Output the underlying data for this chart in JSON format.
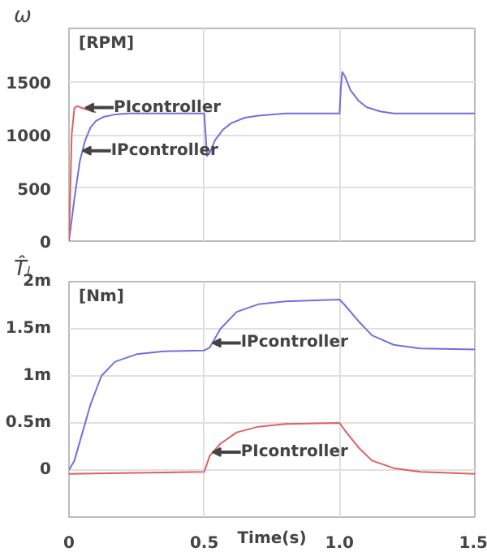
{
  "chart_data": [
    {
      "type": "line",
      "ylabel": "ω",
      "xlim": [
        0,
        1.5
      ],
      "xticks": [
        {
          "value": 0.5,
          "label": null
        },
        {
          "value": 1,
          "label": null
        }
      ],
      "ylim": [
        0,
        2000
      ],
      "yticks": [
        0,
        500,
        1000,
        1500
      ],
      "tick_labels": "y",
      "grid": true,
      "annotations": [
        "[RPM]",
        {
          "text": "PIcontroller",
          "x": 0.06,
          "y": 1255
        },
        {
          "text": "IPcontroller",
          "x": 0.05,
          "y": 850
        }
      ],
      "series": [
        {
          "color": "#7070e0",
          "x": [
            0,
            0.02,
            0.04,
            0.06,
            0.08,
            0.1,
            0.13,
            0.17,
            0.22,
            0.5,
            0.505,
            0.51,
            0.52,
            0.54,
            0.57,
            0.6,
            0.65,
            0.7,
            0.8,
            1.0,
            1.005,
            1.01,
            1.02,
            1.04,
            1.07,
            1.1,
            1.15,
            1.2,
            1.3,
            1.5
          ],
          "values": [
            0,
            400,
            750,
            950,
            1070,
            1130,
            1170,
            1190,
            1200,
            1200,
            1000,
            800,
            830,
            950,
            1050,
            1110,
            1160,
            1180,
            1200,
            1200,
            1450,
            1590,
            1550,
            1420,
            1320,
            1260,
            1220,
            1200,
            1200,
            1200
          ]
        },
        {
          "color": "#e06060",
          "x": [
            0,
            0.01,
            0.02,
            0.03,
            0.05,
            0.1
          ],
          "values": [
            0,
            1000,
            1250,
            1270,
            1250,
            1210
          ]
        }
      ]
    },
    {
      "type": "line",
      "ylabel": "T̂ₗ",
      "xlabel": "Time(s)",
      "xlim": [
        0,
        1.5
      ],
      "xticks": [
        0,
        {
          "value": 0.5,
          "label": "0.5"
        },
        {
          "value": 1,
          "label": "1.0"
        },
        {
          "value": 1.5,
          "label": "1.5"
        }
      ],
      "ylim": [
        -0.5,
        2
      ],
      "yticks": [
        0,
        {
          "value": 0.5,
          "label": "0.5m"
        },
        {
          "value": 1,
          "label": "1m"
        },
        {
          "value": 1.5,
          "label": "1.5m"
        },
        {
          "value": 2,
          "label": "2m"
        }
      ],
      "grid": true,
      "annotations": [
        "[Nm]",
        {
          "text": "IPcontroller",
          "x": 0.53,
          "y": 1.35
        },
        {
          "text": "PIcontroller",
          "x": 0.53,
          "y": 0.19
        }
      ],
      "series": [
        {
          "color": "#7070e0",
          "x": [
            0,
            0.02,
            0.05,
            0.08,
            0.12,
            0.17,
            0.25,
            0.35,
            0.5,
            0.52,
            0.56,
            0.62,
            0.7,
            0.8,
            1.0,
            1.02,
            1.07,
            1.12,
            1.2,
            1.3,
            1.5
          ],
          "values": [
            0,
            0.1,
            0.4,
            0.7,
            1,
            1.15,
            1.23,
            1.26,
            1.27,
            1.3,
            1.5,
            1.68,
            1.76,
            1.79,
            1.81,
            1.75,
            1.58,
            1.43,
            1.33,
            1.29,
            1.28
          ]
        },
        {
          "color": "#e06060",
          "x": [
            0,
            0.5,
            0.52,
            0.56,
            0.62,
            0.7,
            0.8,
            1.0,
            1.02,
            1.07,
            1.12,
            1.2,
            1.3,
            1.5
          ],
          "values": [
            -0.04,
            -0.02,
            0.15,
            0.28,
            0.4,
            0.46,
            0.49,
            0.5,
            0.42,
            0.24,
            0.1,
            0.02,
            -0.02,
            -0.04
          ]
        }
      ]
    }
  ]
}
